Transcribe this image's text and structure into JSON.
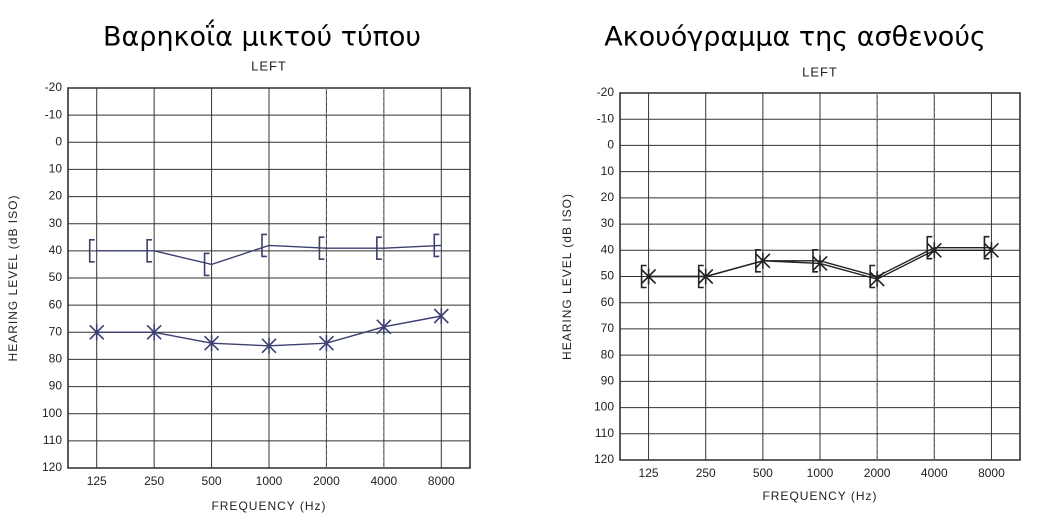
{
  "chart_data": [
    {
      "type": "audiogram",
      "title": "Βαρηκοΐα μικτού τύπου",
      "subtitle": "LEFT",
      "y_label": "HEARING LEVEL (dB ISO)",
      "x_label": "FREQUENCY (Hz)",
      "categories": [
        "125",
        "250",
        "500",
        "1000",
        "2000",
        "4000",
        "8000"
      ],
      "ylim": [
        -20,
        120
      ],
      "yticks": [
        -20,
        -10,
        0,
        10,
        20,
        30,
        40,
        50,
        60,
        70,
        80,
        90,
        100,
        110,
        120
      ],
      "inverted": true,
      "grid": true,
      "series": [
        {
          "marker": "bracket",
          "color": "#3b4070",
          "values": [
            40,
            40,
            45,
            38,
            39,
            39,
            38
          ]
        },
        {
          "marker": "x",
          "color": "#3b4070",
          "values": [
            70,
            70,
            74,
            75,
            74,
            68,
            64
          ]
        }
      ]
    },
    {
      "type": "audiogram",
      "title": "Ακουόγραμμα της ασθενούς",
      "subtitle": "LEFT",
      "y_label": "HEARING LEVEL (dB ISO)",
      "x_label": "FREQUENCY (Hz)",
      "categories": [
        "125",
        "250",
        "500",
        "1000",
        "2000",
        "4000",
        "8000"
      ],
      "ylim": [
        -20,
        120
      ],
      "yticks": [
        -20,
        -10,
        0,
        10,
        20,
        30,
        40,
        50,
        60,
        70,
        80,
        90,
        100,
        110,
        120
      ],
      "inverted": true,
      "grid": true,
      "series": [
        {
          "marker": "bracket",
          "color": "#222222",
          "values": [
            50,
            50,
            44,
            44,
            50,
            39,
            39
          ]
        },
        {
          "marker": "x",
          "color": "#222222",
          "values": [
            50,
            50,
            44,
            45,
            51,
            40,
            40
          ]
        }
      ]
    }
  ]
}
